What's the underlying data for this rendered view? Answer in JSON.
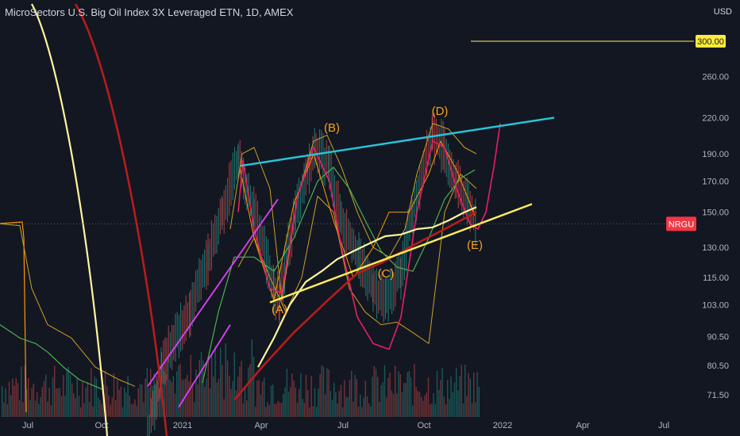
{
  "header": {
    "title": "MicroSectors U.S. Big Oil Index 3X Leveraged ETN, 1D, AMEX",
    "currency": "USD"
  },
  "chart_data": {
    "type": "line",
    "y_scale": "log",
    "y_ticks": [
      71.5,
      80.5,
      90.5,
      103.0,
      115.0,
      130.0,
      150.0,
      170.0,
      190.0,
      220.0,
      260.0,
      300.0
    ],
    "x_ticks": [
      "Jul",
      "Oct",
      "2021",
      "Apr",
      "Jul",
      "Oct",
      "2022",
      "Apr",
      "Jul"
    ],
    "symbol_tag": {
      "label": "NRGU",
      "color": "#f23645",
      "value": 143
    },
    "level_tag": {
      "label": "300.00",
      "color": "#ffeb3b",
      "value": 300
    },
    "wave_labels": [
      "(A)",
      "(B)",
      "(C)",
      "(D)",
      "(E)"
    ],
    "colors": {
      "background": "#131722",
      "upper_trendline": "#26c6da",
      "lower_trendline": "#ffee58",
      "ma_yellow": "#fff59d",
      "ma_red": "#b71c1c",
      "magenta": "#e040fb",
      "pink": "#e91e63",
      "green": "#4caf50",
      "orange": "#ff9800",
      "bands": "#c9a227"
    }
  }
}
